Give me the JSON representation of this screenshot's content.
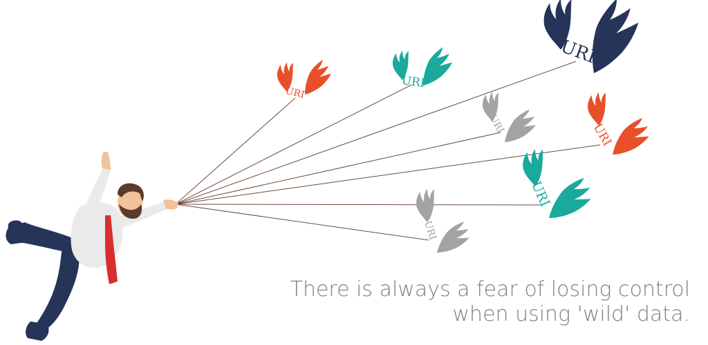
{
  "caption": {
    "line1": "There is always a fear of losing control",
    "line2": "when using 'wild' data."
  },
  "balloon_label": "URI",
  "colors": {
    "navy": "#253458",
    "orange": "#e8502a",
    "teal": "#1aa99b",
    "gray": "#a3a3a5",
    "string": "#6b4a3a",
    "caption": "#7f7f7f",
    "tie": "#d92e2e",
    "skin": "#f2c29b",
    "hair": "#5a3a2a",
    "shirt": "#eaeaea",
    "pants": "#253458"
  },
  "balloons": [
    {
      "id": "orange-small",
      "color": "orange"
    },
    {
      "id": "teal-top",
      "color": "teal"
    },
    {
      "id": "navy-large",
      "color": "navy"
    },
    {
      "id": "gray-middle",
      "color": "gray"
    },
    {
      "id": "orange-right",
      "color": "orange"
    },
    {
      "id": "teal-lower",
      "color": "teal"
    },
    {
      "id": "gray-bottom",
      "color": "gray"
    }
  ]
}
